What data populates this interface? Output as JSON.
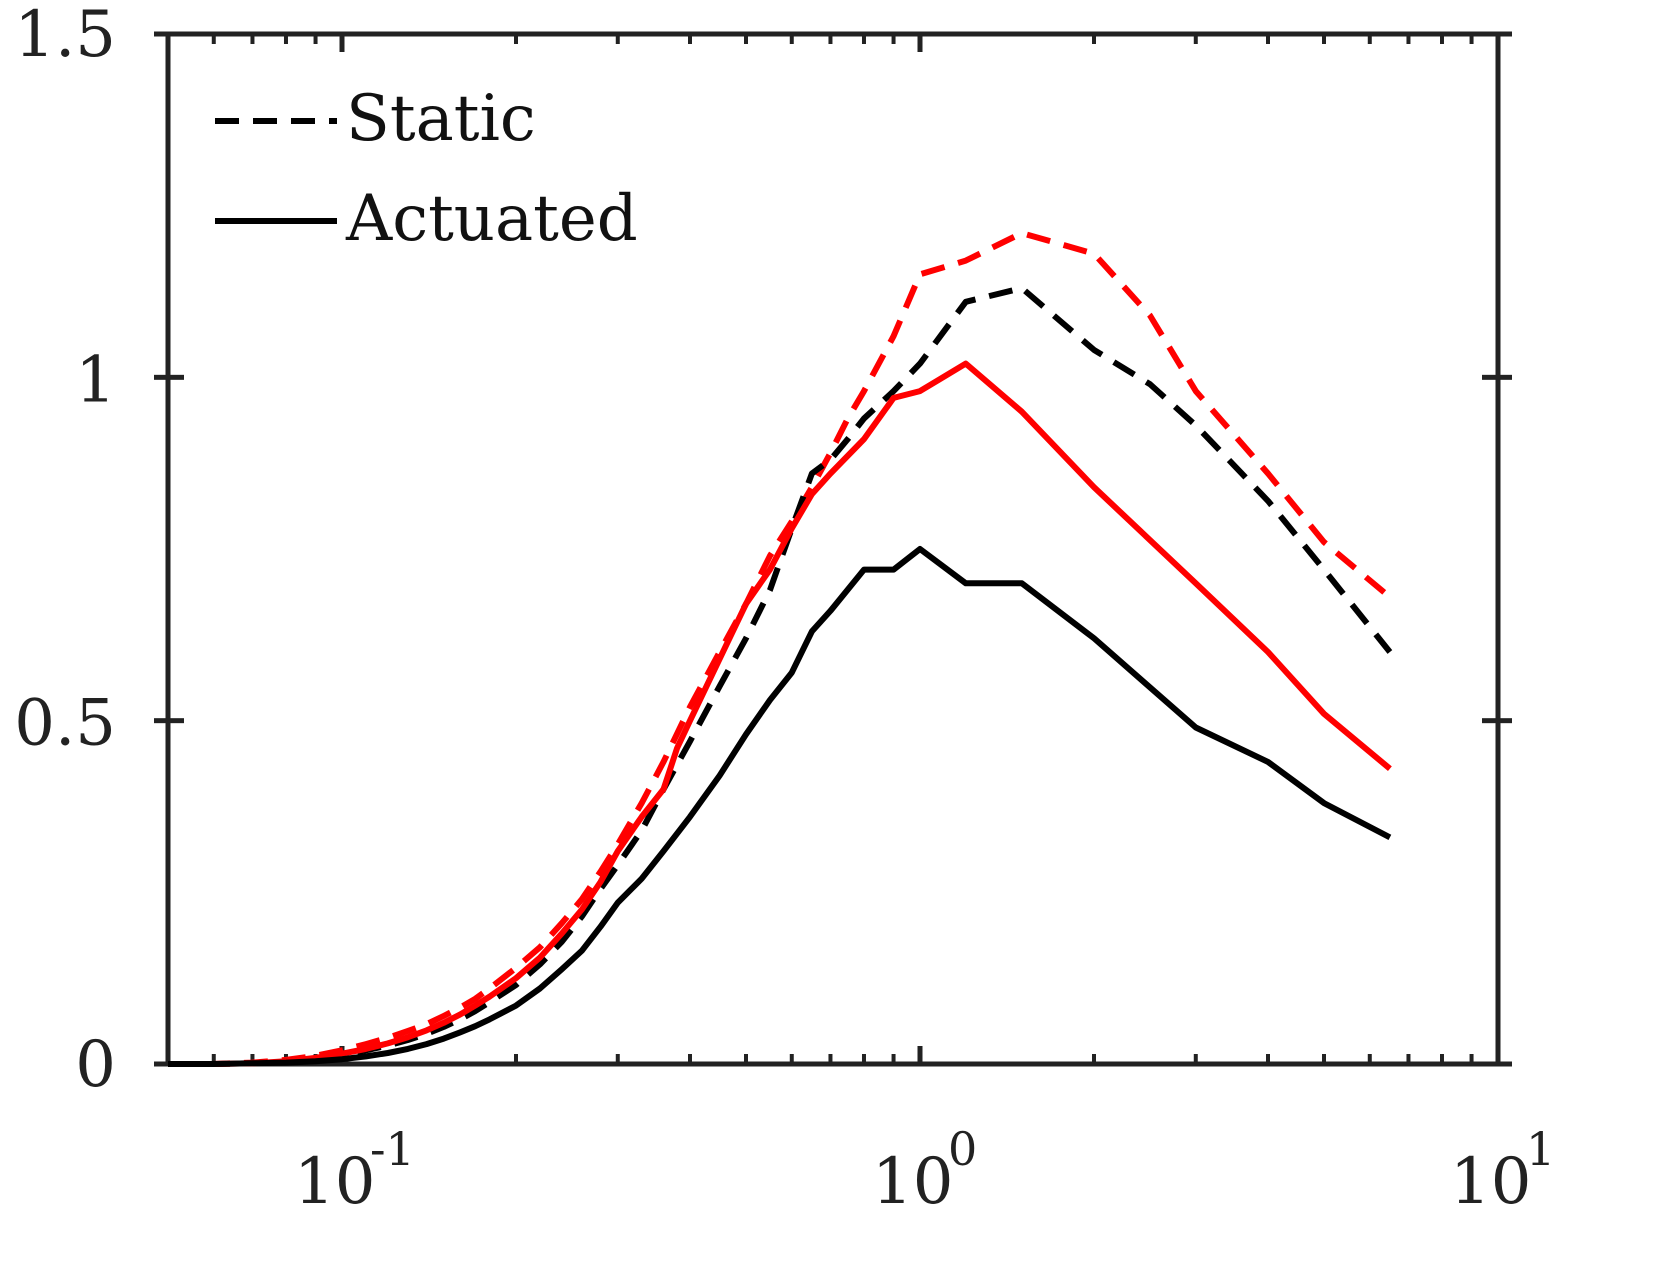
{
  "chart_data": {
    "type": "line",
    "title": "",
    "xlabel": "",
    "ylabel": "",
    "x_scale": "log",
    "xlim": [
      0.05,
      10
    ],
    "ylim": [
      0,
      1.5
    ],
    "x_ticks": [
      {
        "value": 0.1,
        "base": "10",
        "exp": "-1"
      },
      {
        "value": 1,
        "base": "10",
        "exp": "0"
      },
      {
        "value": 10,
        "base": "10",
        "exp": "1"
      }
    ],
    "y_ticks": [
      {
        "value": 0,
        "label": "0"
      },
      {
        "value": 0.5,
        "label": "0.5"
      },
      {
        "value": 1,
        "label": "1"
      },
      {
        "value": 1.5,
        "label": "1.5"
      }
    ],
    "legend": {
      "position": "top-left",
      "entries": [
        {
          "label": "Static",
          "style": "dashed",
          "color": "#000000"
        },
        {
          "label": "Actuated",
          "style": "solid",
          "color": "#000000"
        }
      ]
    },
    "series": [
      {
        "name": "Static (red)",
        "color": "#ff0000",
        "style": "dashed",
        "points": [
          [
            0.05,
            0
          ],
          [
            0.06,
            0
          ],
          [
            0.07,
            0.002
          ],
          [
            0.08,
            0.006
          ],
          [
            0.09,
            0.012
          ],
          [
            0.1,
            0.02
          ],
          [
            0.11,
            0.029
          ],
          [
            0.12,
            0.038
          ],
          [
            0.13,
            0.048
          ],
          [
            0.14,
            0.058
          ],
          [
            0.15,
            0.07
          ],
          [
            0.16,
            0.082
          ],
          [
            0.17,
            0.095
          ],
          [
            0.18,
            0.11
          ],
          [
            0.2,
            0.14
          ],
          [
            0.22,
            0.17
          ],
          [
            0.24,
            0.205
          ],
          [
            0.26,
            0.24
          ],
          [
            0.28,
            0.28
          ],
          [
            0.3,
            0.32
          ],
          [
            0.33,
            0.38
          ],
          [
            0.36,
            0.44
          ],
          [
            0.4,
            0.52
          ],
          [
            0.45,
            0.6
          ],
          [
            0.5,
            0.67
          ],
          [
            0.55,
            0.74
          ],
          [
            0.6,
            0.79
          ],
          [
            0.65,
            0.84
          ],
          [
            0.7,
            0.89
          ],
          [
            0.75,
            0.94
          ],
          [
            0.8,
            0.98
          ],
          [
            0.9,
            1.06
          ],
          [
            1.0,
            1.15
          ],
          [
            1.2,
            1.17
          ],
          [
            1.5,
            1.21
          ],
          [
            2.0,
            1.18
          ],
          [
            2.5,
            1.09
          ],
          [
            3.0,
            0.98
          ],
          [
            4.0,
            0.86
          ],
          [
            5.0,
            0.76
          ],
          [
            6.5,
            0.68
          ]
        ]
      },
      {
        "name": "Static (black)",
        "color": "#000000",
        "style": "dashed",
        "points": [
          [
            0.05,
            0
          ],
          [
            0.06,
            0
          ],
          [
            0.07,
            0.001
          ],
          [
            0.08,
            0.004
          ],
          [
            0.09,
            0.008
          ],
          [
            0.1,
            0.013
          ],
          [
            0.11,
            0.02
          ],
          [
            0.12,
            0.027
          ],
          [
            0.13,
            0.035
          ],
          [
            0.14,
            0.044
          ],
          [
            0.15,
            0.054
          ],
          [
            0.16,
            0.065
          ],
          [
            0.17,
            0.077
          ],
          [
            0.18,
            0.09
          ],
          [
            0.2,
            0.115
          ],
          [
            0.22,
            0.145
          ],
          [
            0.24,
            0.178
          ],
          [
            0.26,
            0.215
          ],
          [
            0.28,
            0.255
          ],
          [
            0.3,
            0.29
          ],
          [
            0.33,
            0.34
          ],
          [
            0.36,
            0.4
          ],
          [
            0.4,
            0.47
          ],
          [
            0.45,
            0.55
          ],
          [
            0.5,
            0.62
          ],
          [
            0.55,
            0.69
          ],
          [
            0.6,
            0.78
          ],
          [
            0.65,
            0.86
          ],
          [
            0.7,
            0.88
          ],
          [
            0.75,
            0.91
          ],
          [
            0.8,
            0.94
          ],
          [
            0.9,
            0.98
          ],
          [
            1.0,
            1.02
          ],
          [
            1.2,
            1.11
          ],
          [
            1.5,
            1.13
          ],
          [
            2.0,
            1.04
          ],
          [
            2.5,
            0.99
          ],
          [
            3.0,
            0.93
          ],
          [
            4.0,
            0.82
          ],
          [
            5.0,
            0.72
          ],
          [
            6.5,
            0.6
          ]
        ]
      },
      {
        "name": "Actuated (red)",
        "color": "#ff0000",
        "style": "solid",
        "points": [
          [
            0.05,
            0
          ],
          [
            0.06,
            0
          ],
          [
            0.07,
            0.001
          ],
          [
            0.08,
            0.004
          ],
          [
            0.09,
            0.009
          ],
          [
            0.1,
            0.015
          ],
          [
            0.11,
            0.022
          ],
          [
            0.12,
            0.03
          ],
          [
            0.13,
            0.039
          ],
          [
            0.14,
            0.049
          ],
          [
            0.15,
            0.06
          ],
          [
            0.16,
            0.072
          ],
          [
            0.17,
            0.085
          ],
          [
            0.18,
            0.098
          ],
          [
            0.2,
            0.125
          ],
          [
            0.22,
            0.155
          ],
          [
            0.24,
            0.19
          ],
          [
            0.26,
            0.225
          ],
          [
            0.28,
            0.265
          ],
          [
            0.3,
            0.31
          ],
          [
            0.33,
            0.36
          ],
          [
            0.36,
            0.4
          ],
          [
            0.38,
            0.46
          ],
          [
            0.4,
            0.5
          ],
          [
            0.45,
            0.59
          ],
          [
            0.5,
            0.67
          ],
          [
            0.55,
            0.72
          ],
          [
            0.6,
            0.78
          ],
          [
            0.65,
            0.83
          ],
          [
            0.7,
            0.86
          ],
          [
            0.8,
            0.91
          ],
          [
            0.9,
            0.97
          ],
          [
            1.0,
            0.98
          ],
          [
            1.2,
            1.02
          ],
          [
            1.5,
            0.95
          ],
          [
            2.0,
            0.84
          ],
          [
            3.0,
            0.7
          ],
          [
            4.0,
            0.6
          ],
          [
            5.0,
            0.51
          ],
          [
            6.5,
            0.43
          ]
        ]
      },
      {
        "name": "Actuated (black)",
        "color": "#000000",
        "style": "solid",
        "points": [
          [
            0.05,
            0
          ],
          [
            0.06,
            0
          ],
          [
            0.07,
            0.001
          ],
          [
            0.08,
            0.002
          ],
          [
            0.09,
            0.004
          ],
          [
            0.1,
            0.007
          ],
          [
            0.11,
            0.011
          ],
          [
            0.12,
            0.016
          ],
          [
            0.13,
            0.022
          ],
          [
            0.14,
            0.029
          ],
          [
            0.15,
            0.037
          ],
          [
            0.16,
            0.046
          ],
          [
            0.17,
            0.055
          ],
          [
            0.18,
            0.065
          ],
          [
            0.2,
            0.085
          ],
          [
            0.22,
            0.11
          ],
          [
            0.24,
            0.138
          ],
          [
            0.26,
            0.165
          ],
          [
            0.28,
            0.2
          ],
          [
            0.3,
            0.235
          ],
          [
            0.33,
            0.27
          ],
          [
            0.36,
            0.31
          ],
          [
            0.4,
            0.36
          ],
          [
            0.45,
            0.42
          ],
          [
            0.5,
            0.48
          ],
          [
            0.55,
            0.53
          ],
          [
            0.6,
            0.57
          ],
          [
            0.65,
            0.63
          ],
          [
            0.7,
            0.66
          ],
          [
            0.8,
            0.72
          ],
          [
            0.9,
            0.72
          ],
          [
            1.0,
            0.75
          ],
          [
            1.2,
            0.7
          ],
          [
            1.5,
            0.7
          ],
          [
            2.0,
            0.62
          ],
          [
            3.0,
            0.49
          ],
          [
            4.0,
            0.44
          ],
          [
            5.0,
            0.38
          ],
          [
            6.5,
            0.33
          ]
        ]
      }
    ]
  }
}
